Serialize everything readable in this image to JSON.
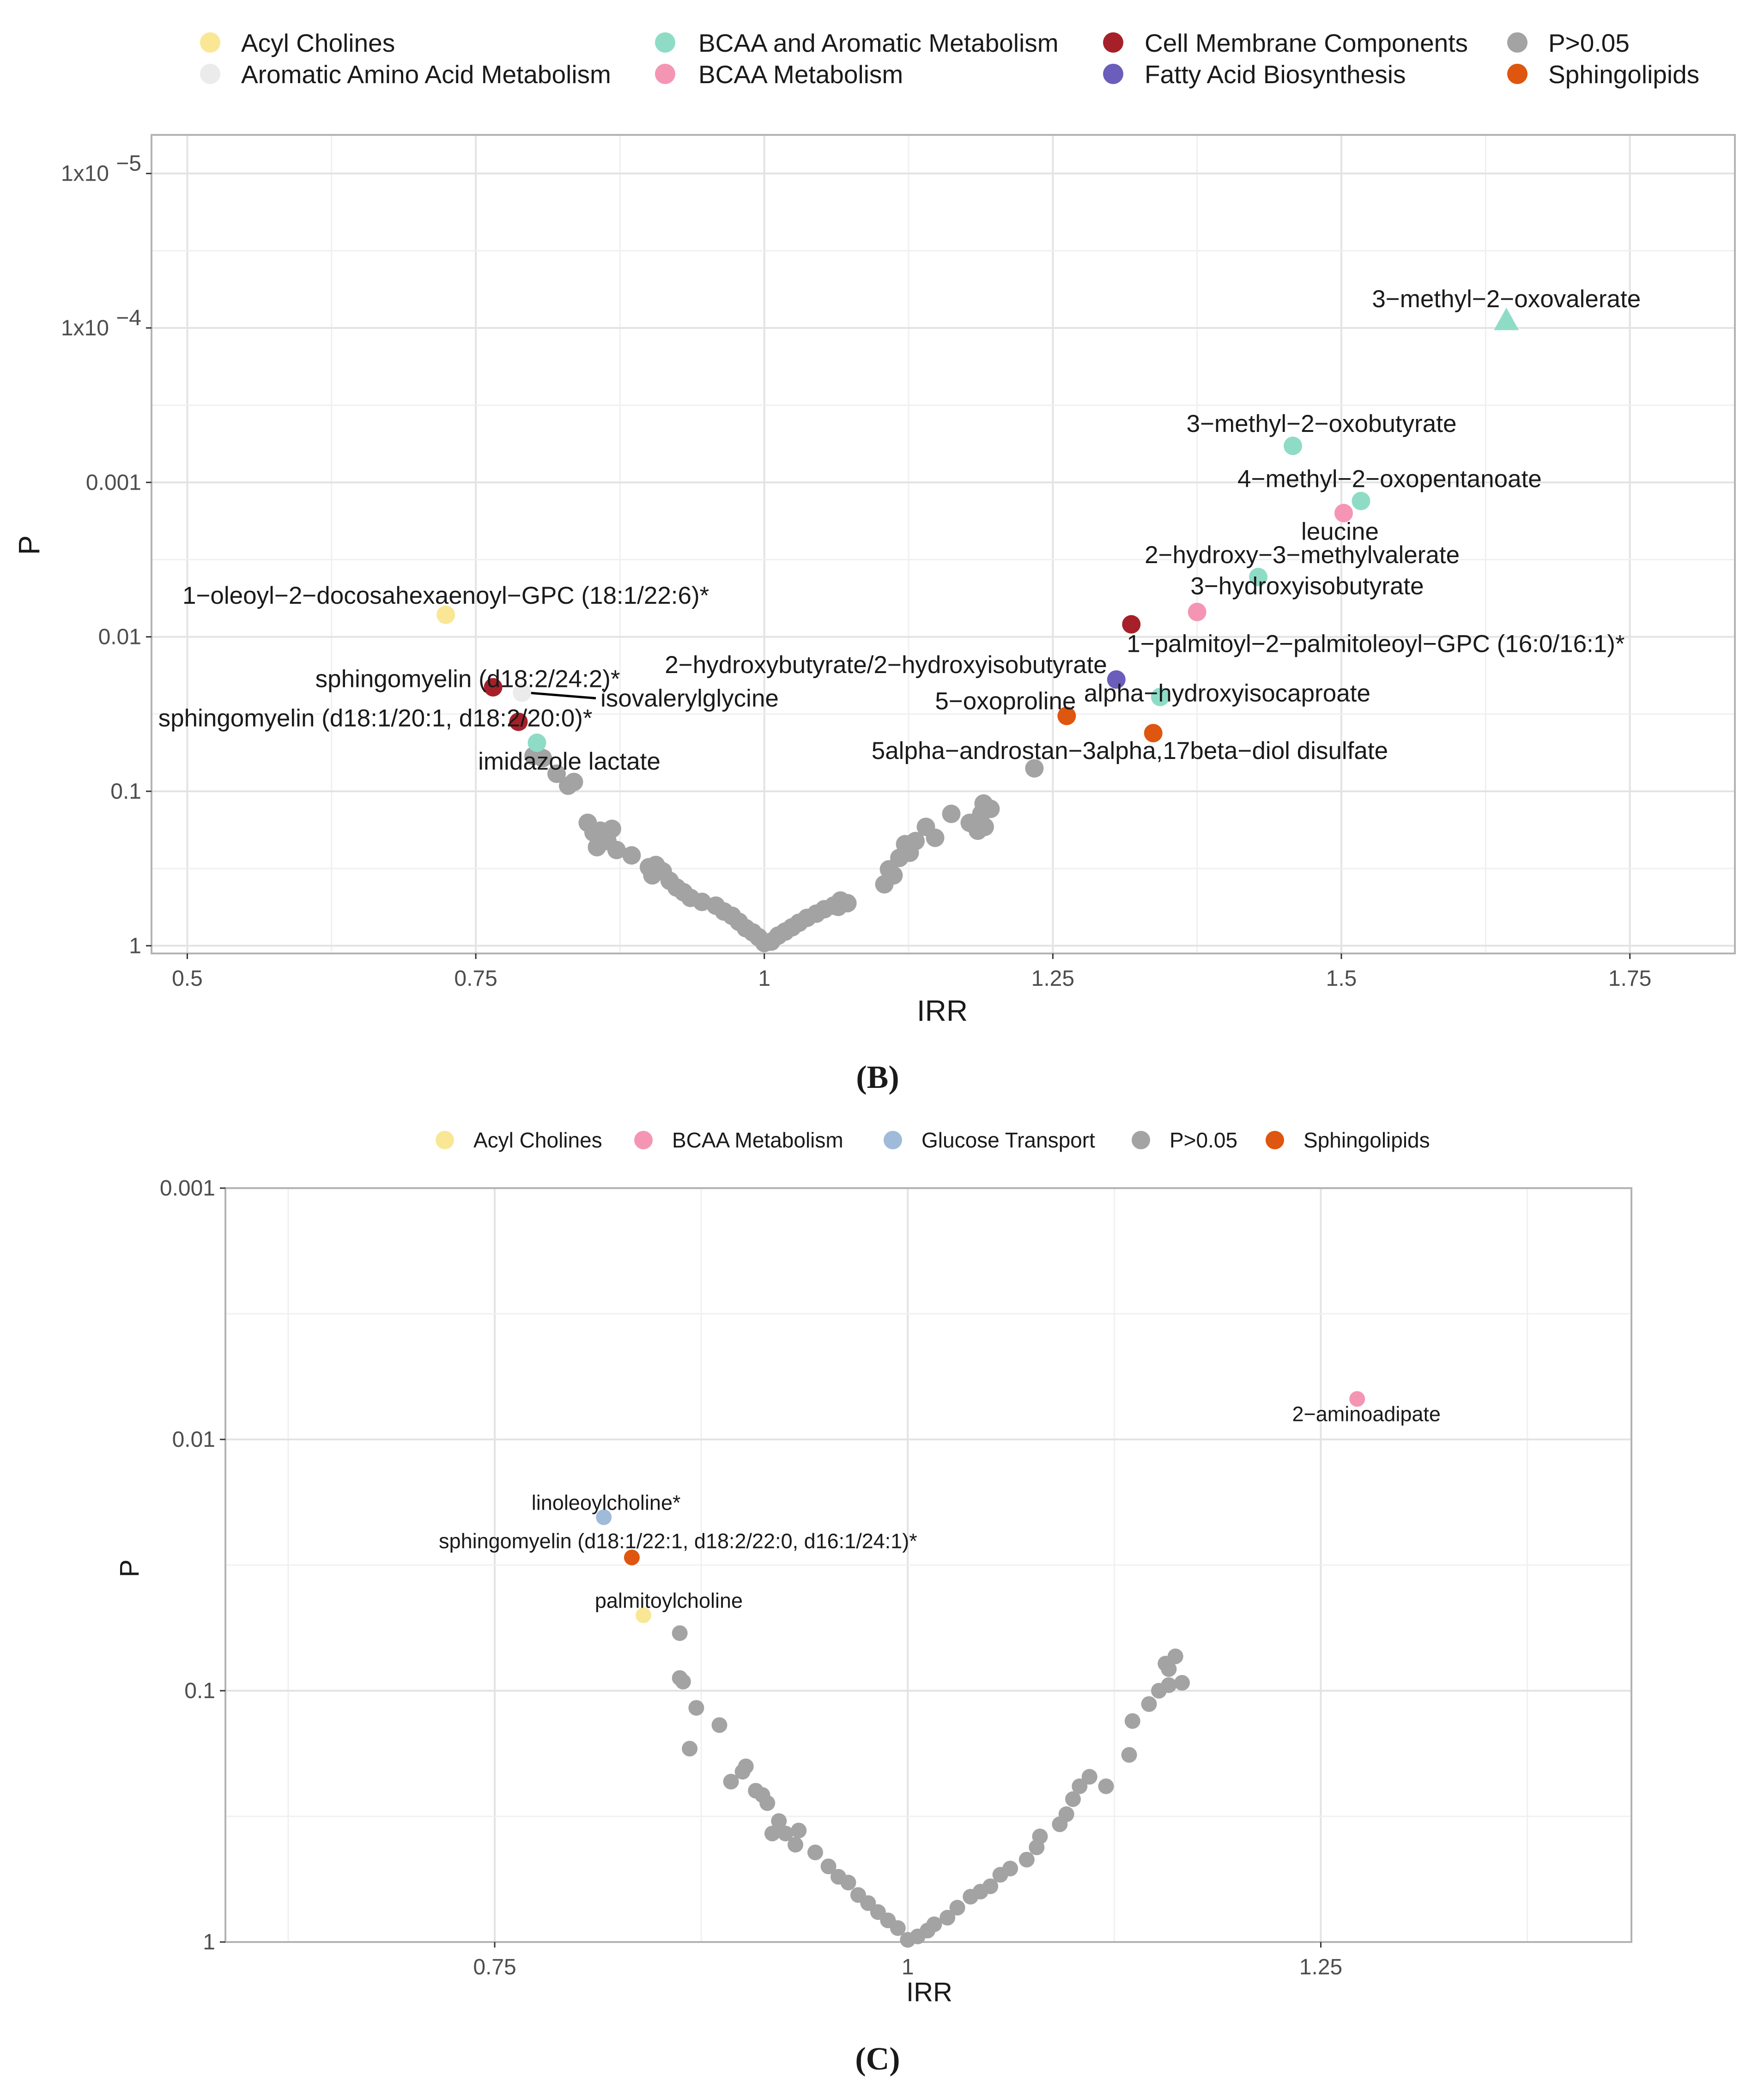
{
  "colors": {
    "Acyl Cholines": "#fae796",
    "Aromatic Amino Acid Metabolism": "#ebebeb",
    "BCAA and Aromatic Metabolism": "#8fdcc6",
    "BCAA Metabolism": "#f595b4",
    "Cell Membrane Components": "#a6202a",
    "Fatty Acid Biosynthesis": "#6b5dbb",
    "P>0.05": "#a3a3a3",
    "Sphingolipids": "#de560f",
    "Glucose Transport": "#9fbbd9"
  },
  "chart_data": [
    {
      "panel": "(B)",
      "type": "scatter",
      "xlabel": "IRR",
      "ylabel": "P",
      "xlim": [
        0.469,
        1.841
      ],
      "y_scale": "log-reversed",
      "ylim_log10": [
        0.05,
        -5.25
      ],
      "x_ticks": [
        "0.5",
        "0.75",
        "1",
        "1.25",
        "1.5",
        "1.75"
      ],
      "x_tick_values": [
        0.5,
        0.75,
        1.0,
        1.25,
        1.5,
        1.75
      ],
      "y_ticks": [
        "1",
        "0.1",
        "0.01",
        "0.001",
        "1x10",
        "1x10"
      ],
      "y_tick_exponents": [
        "",
        "",
        "",
        "",
        "−4",
        "−5"
      ],
      "y_tick_values": [
        1,
        0.1,
        0.01,
        0.001,
        0.0001,
        1e-05
      ],
      "grid": true,
      "legend_position": "top",
      "legend": [
        "Acyl Cholines",
        "Aromatic Amino Acid Metabolism",
        "BCAA and Aromatic Metabolism",
        "BCAA Metabolism",
        "Cell Membrane Components",
        "Fatty Acid Biosynthesis",
        "P>0.05",
        "Sphingolipids"
      ],
      "labeled_points": [
        {
          "label": "3−methyl−2−oxovalerate",
          "x": 1.643,
          "p": 8.9e-05,
          "group": "BCAA and Aromatic Metabolism",
          "shape": "triangle"
        },
        {
          "label": "3−methyl−2−oxobutyrate",
          "x": 1.458,
          "p": 0.00058,
          "group": "BCAA and Aromatic Metabolism"
        },
        {
          "label": "4−methyl−2−oxopentanoate",
          "x": 1.517,
          "p": 0.00132,
          "group": "BCAA and Aromatic Metabolism"
        },
        {
          "label": "leucine",
          "x": 1.502,
          "p": 0.00158,
          "group": "BCAA Metabolism"
        },
        {
          "label": "2−hydroxy−3−methylvalerate",
          "x": 1.428,
          "p": 0.0041,
          "group": "BCAA and Aromatic Metabolism"
        },
        {
          "label": "3−hydroxyisobutyrate",
          "x": 1.375,
          "p": 0.0069,
          "group": "BCAA Metabolism"
        },
        {
          "label": "1−palmitoyl−2−palmitoleoyl−GPC (16:0/16:1)*",
          "x": 1.318,
          "p": 0.0083,
          "group": "Cell Membrane Components"
        },
        {
          "label": "1−oleoyl−2−docosahexaenoyl−GPC (18:1/22:6)*",
          "x": 0.724,
          "p": 0.0072,
          "group": "Acyl Cholines"
        },
        {
          "label": "2−hydroxybutyrate/2−hydroxyisobutyrate",
          "x": 1.305,
          "p": 0.0189,
          "group": "Fatty Acid Biosynthesis"
        },
        {
          "label": "5−oxoproline",
          "x": 1.262,
          "p": 0.0325,
          "group": "Sphingolipids"
        },
        {
          "label": "alpha−hydroxyisocaproate",
          "x": 1.343,
          "p": 0.0245,
          "group": "BCAA and Aromatic Metabolism"
        },
        {
          "label": "5alpha−androstan−3alpha,17beta−diol disulfate",
          "x": 1.337,
          "p": 0.042,
          "group": "Sphingolipids"
        },
        {
          "label": "sphingomyelin (d18:2/24:2)*",
          "x": 0.765,
          "p": 0.0212,
          "group": "Cell Membrane Components"
        },
        {
          "label": "isovalerylglycine",
          "x": 0.79,
          "p": 0.023,
          "group": "Aromatic Amino Acid Metabolism"
        },
        {
          "label": "sphingomyelin (d18:1/20:1, d18:2/20:0)*",
          "x": 0.787,
          "p": 0.0355,
          "group": "Cell Membrane Components"
        },
        {
          "label": "imidazole lactate",
          "x": 0.803,
          "p": 0.0485,
          "group": "BCAA and Aromatic Metabolism"
        }
      ],
      "background_points": [
        [
          0.8,
          0.059
        ],
        [
          0.808,
          0.061
        ],
        [
          0.82,
          0.077
        ],
        [
          0.83,
          0.092
        ],
        [
          0.835,
          0.087
        ],
        [
          0.847,
          0.16
        ],
        [
          0.852,
          0.185
        ],
        [
          0.858,
          0.18
        ],
        [
          0.868,
          0.175
        ],
        [
          0.855,
          0.23
        ],
        [
          0.864,
          0.21
        ],
        [
          0.872,
          0.24
        ],
        [
          0.885,
          0.26
        ],
        [
          0.9,
          0.31
        ],
        [
          0.906,
          0.3
        ],
        [
          0.912,
          0.33
        ],
        [
          0.903,
          0.35
        ],
        [
          0.918,
          0.38
        ],
        [
          0.924,
          0.42
        ],
        [
          0.93,
          0.45
        ],
        [
          0.936,
          0.49
        ],
        [
          0.946,
          0.52
        ],
        [
          0.958,
          0.55
        ],
        [
          0.965,
          0.6
        ],
        [
          0.972,
          0.64
        ],
        [
          0.978,
          0.7
        ],
        [
          0.984,
          0.77
        ],
        [
          0.99,
          0.82
        ],
        [
          0.995,
          0.88
        ],
        [
          1.0,
          0.96
        ],
        [
          1.006,
          0.94
        ],
        [
          1.012,
          0.86
        ],
        [
          1.018,
          0.81
        ],
        [
          1.024,
          0.76
        ],
        [
          1.03,
          0.71
        ],
        [
          1.037,
          0.66
        ],
        [
          1.045,
          0.62
        ],
        [
          1.052,
          0.58
        ],
        [
          1.06,
          0.55
        ],
        [
          1.066,
          0.51
        ],
        [
          1.072,
          0.53
        ],
        [
          1.064,
          0.56
        ],
        [
          1.104,
          0.4
        ],
        [
          1.108,
          0.32
        ],
        [
          1.112,
          0.35
        ],
        [
          1.117,
          0.27
        ],
        [
          1.122,
          0.22
        ],
        [
          1.126,
          0.25
        ],
        [
          1.131,
          0.21
        ],
        [
          1.14,
          0.17
        ],
        [
          1.148,
          0.2
        ],
        [
          1.162,
          0.14
        ],
        [
          1.178,
          0.16
        ],
        [
          1.185,
          0.18
        ],
        [
          1.19,
          0.12
        ],
        [
          1.196,
          0.13
        ],
        [
          1.188,
          0.14
        ],
        [
          1.191,
          0.17
        ],
        [
          1.234,
          0.071
        ]
      ]
    },
    {
      "panel": "(C)",
      "type": "scatter",
      "xlabel": "IRR",
      "ylabel": "P",
      "xlim": [
        0.587,
        1.438
      ],
      "y_scale": "log-reversed",
      "ylim_log10": [
        0.0,
        -3.0
      ],
      "x_ticks": [
        "0.75",
        "1",
        "1.25"
      ],
      "x_tick_values": [
        0.75,
        1.0,
        1.25
      ],
      "y_ticks": [
        "1",
        "0.1",
        "0.01",
        "0.001"
      ],
      "y_tick_values": [
        1,
        0.1,
        0.01,
        0.001
      ],
      "grid": true,
      "legend_position": "top",
      "legend": [
        "Acyl Cholines",
        "BCAA Metabolism",
        "Glucose Transport",
        "P>0.05",
        "Sphingolipids"
      ],
      "labeled_points": [
        {
          "label": "2−aminoadipate",
          "x": 1.272,
          "p": 0.0069,
          "group": "BCAA Metabolism"
        },
        {
          "label": "linoleoylcholine*",
          "x": 0.816,
          "p": 0.0204,
          "group": "Glucose Transport"
        },
        {
          "label": "sphingomyelin (d18:1/22:1, d18:2/22:0, d16:1/24:1)*",
          "x": 0.833,
          "p": 0.0295,
          "group": "Sphingolipids"
        },
        {
          "label": "palmitoylcholine",
          "x": 0.84,
          "p": 0.0501,
          "group": "Acyl Cholines"
        }
      ],
      "background_points": [
        [
          0.862,
          0.059
        ],
        [
          0.862,
          0.089
        ],
        [
          0.864,
          0.092
        ],
        [
          0.872,
          0.117
        ],
        [
          0.868,
          0.17
        ],
        [
          0.886,
          0.137
        ],
        [
          0.893,
          0.23
        ],
        [
          0.9,
          0.21
        ],
        [
          0.902,
          0.2
        ],
        [
          0.908,
          0.25
        ],
        [
          0.912,
          0.26
        ],
        [
          0.915,
          0.28
        ],
        [
          0.922,
          0.33
        ],
        [
          0.926,
          0.37
        ],
        [
          0.934,
          0.36
        ],
        [
          0.918,
          0.37
        ],
        [
          0.932,
          0.41
        ],
        [
          0.944,
          0.44
        ],
        [
          0.952,
          0.5
        ],
        [
          0.958,
          0.55
        ],
        [
          0.964,
          0.58
        ],
        [
          0.97,
          0.65
        ],
        [
          0.976,
          0.7
        ],
        [
          0.982,
          0.76
        ],
        [
          0.988,
          0.82
        ],
        [
          0.994,
          0.88
        ],
        [
          1.0,
          0.98
        ],
        [
          1.006,
          0.95
        ],
        [
          1.012,
          0.9
        ],
        [
          1.016,
          0.85
        ],
        [
          1.024,
          0.8
        ],
        [
          1.03,
          0.73
        ],
        [
          1.038,
          0.66
        ],
        [
          1.044,
          0.63
        ],
        [
          1.05,
          0.6
        ],
        [
          1.056,
          0.54
        ],
        [
          1.062,
          0.51
        ],
        [
          1.072,
          0.47
        ],
        [
          1.078,
          0.42
        ],
        [
          1.08,
          0.38
        ],
        [
          1.092,
          0.34
        ],
        [
          1.096,
          0.31
        ],
        [
          1.1,
          0.27
        ],
        [
          1.104,
          0.24
        ],
        [
          1.11,
          0.22
        ],
        [
          1.12,
          0.24
        ],
        [
          1.134,
          0.18
        ],
        [
          1.136,
          0.132
        ],
        [
          1.146,
          0.113
        ],
        [
          1.152,
          0.1
        ],
        [
          1.156,
          0.078
        ],
        [
          1.158,
          0.082
        ],
        [
          1.162,
          0.073
        ],
        [
          1.166,
          0.093
        ],
        [
          1.158,
          0.095
        ]
      ]
    }
  ],
  "panel_b": {
    "legend_labels": [
      "Acyl Cholines",
      "Aromatic Amino Acid Metabolism",
      "BCAA and Aromatic Metabolism",
      "BCAA Metabolism",
      "Cell Membrane Components",
      "Fatty Acid Biosynthesis",
      "P>0.05",
      "Sphingolipids"
    ],
    "xlabel": "IRR",
    "ylabel": "P",
    "caption": "(B)"
  },
  "panel_c": {
    "legend_labels": [
      "Acyl Cholines",
      "BCAA Metabolism",
      "Glucose Transport",
      "P>0.05",
      "Sphingolipids"
    ],
    "xlabel": "IRR",
    "ylabel": "P",
    "caption": "(C)"
  }
}
